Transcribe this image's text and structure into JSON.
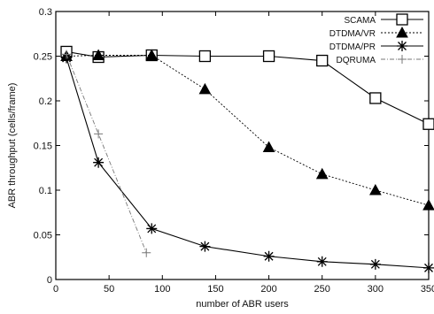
{
  "chart_data": {
    "type": "line",
    "title": "",
    "xlabel": "number of ABR users",
    "ylabel": "ABR throughput (cells/frame)",
    "xlim": [
      0,
      350
    ],
    "ylim": [
      0,
      0.3
    ],
    "xticks": [
      "0",
      "50",
      "100",
      "150",
      "200",
      "250",
      "300",
      "350"
    ],
    "yticks": [
      "0",
      "0.05",
      "0.1",
      "0.15",
      "0.2",
      "0.25",
      "0.3"
    ],
    "grid": false,
    "legend_position": "top-right",
    "series": [
      {
        "name": "SCAMA",
        "marker": "square",
        "line": "solid",
        "color": "#000000",
        "x": [
          10,
          40,
          90,
          140,
          200,
          250,
          300,
          350
        ],
        "y": [
          0.255,
          0.249,
          0.251,
          0.25,
          0.25,
          0.245,
          0.203,
          0.174
        ]
      },
      {
        "name": "DTDMA/VR",
        "marker": "triangle",
        "line": "dotted",
        "color": "#000000",
        "x": [
          10,
          40,
          90,
          140,
          200,
          250,
          300,
          350
        ],
        "y": [
          0.25,
          0.251,
          0.251,
          0.213,
          0.148,
          0.118,
          0.1,
          0.083
        ]
      },
      {
        "name": "DTDMA/PR",
        "marker": "asterisk",
        "line": "solid",
        "color": "#000000",
        "x": [
          10,
          40,
          90,
          140,
          200,
          250,
          300,
          350
        ],
        "y": [
          0.248,
          0.131,
          0.057,
          0.037,
          0.026,
          0.02,
          0.017,
          0.013
        ]
      },
      {
        "name": "DQRUMA",
        "marker": "plus",
        "line": "dashdot",
        "color": "#777777",
        "x": [
          10,
          40,
          85
        ],
        "y": [
          0.252,
          0.163,
          0.03
        ]
      }
    ]
  }
}
